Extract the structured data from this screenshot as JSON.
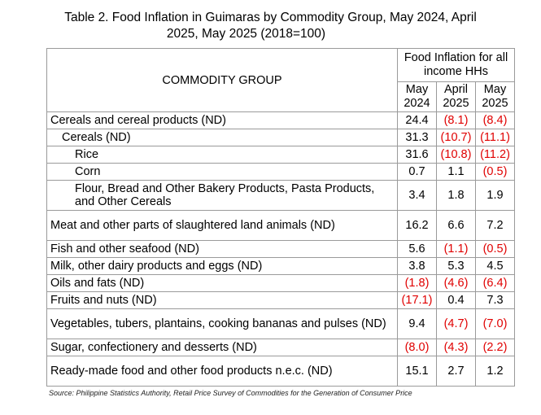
{
  "title": {
    "line1": "Table 2.  Food Inflation in Guimaras by Commodity Group, May 2024, April",
    "line2": "2025, May 2025 (2018=100)"
  },
  "header": {
    "commodity_group": "COMMODITY GROUP",
    "food_inflation_line1": "Food Inflation for all",
    "food_inflation_line2": "income HHs",
    "columns": [
      {
        "month": "May",
        "year": "2024"
      },
      {
        "month": "April",
        "year": "2025"
      },
      {
        "month": "May",
        "year": "2025"
      }
    ]
  },
  "rows": [
    {
      "name": "Cereals and cereal products (ND)",
      "level": 0,
      "values": [
        "24.4",
        "(8.1)",
        "(8.4)"
      ]
    },
    {
      "name": "Cereals (ND)",
      "level": 1,
      "values": [
        "31.3",
        "(10.7)",
        "(11.1)"
      ]
    },
    {
      "name": "Rice",
      "level": 2,
      "values": [
        "31.6",
        "(10.8)",
        "(11.2)"
      ]
    },
    {
      "name": "Corn",
      "level": 2,
      "values": [
        "0.7",
        "1.1",
        "(0.5)"
      ]
    },
    {
      "name": "Flour, Bread and Other Bakery Products, Pasta Products, and Other Cereals",
      "level": 3,
      "values": [
        "3.4",
        "1.8",
        "1.9"
      ]
    },
    {
      "name": "Meat and other parts of slaughtered land animals (ND)",
      "level": 0,
      "values": [
        "16.2",
        "6.6",
        "7.2"
      ]
    },
    {
      "name": "Fish and other seafood (ND)",
      "level": 0,
      "values": [
        "5.6",
        "(1.1)",
        "(0.5)"
      ]
    },
    {
      "name": "Milk, other dairy products and eggs (ND)",
      "level": 0,
      "values": [
        "3.8",
        "5.3",
        "4.5"
      ]
    },
    {
      "name": "Oils and fats (ND)",
      "level": 0,
      "values": [
        "(1.8)",
        "(4.6)",
        "(6.4)"
      ]
    },
    {
      "name": "Fruits and nuts (ND)",
      "level": 0,
      "values": [
        "(17.1)",
        "0.4",
        "7.3"
      ]
    },
    {
      "name": "Vegetables, tubers, plantains, cooking bananas and pulses (ND)",
      "level": 0,
      "values": [
        "9.4",
        "(4.7)",
        "(7.0)"
      ]
    },
    {
      "name": "Sugar, confectionery and desserts (ND)",
      "level": 0,
      "values": [
        "(8.0)",
        "(4.3)",
        "(2.2)"
      ]
    },
    {
      "name": "Ready-made food and other food products n.e.c. (ND)",
      "level": 0,
      "values": [
        "15.1",
        "2.7",
        "1.2"
      ]
    }
  ],
  "source": "Source: Philippine Statistics Authority, Retail Price Survey of Commodities for the Generation of Consumer Price",
  "colors": {
    "negative": "#e00000",
    "border": "#9a9a9a"
  }
}
